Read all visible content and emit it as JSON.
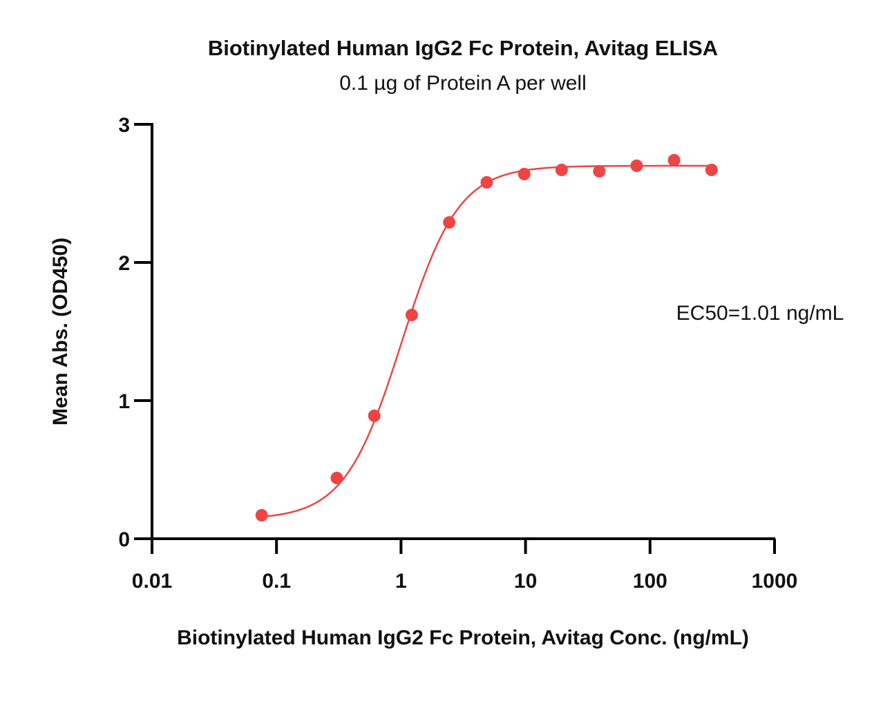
{
  "chart_data": {
    "type": "scatter",
    "title": "Biotinylated Human IgG2 Fc Protein, Avitag ELISA",
    "subtitle": "0.1 µg of Protein A per well",
    "xlabel": "Biotinylated Human IgG2 Fc Protein, Avitag Conc. (ng/mL)",
    "ylabel": "Mean Abs. (OD450)",
    "x_scale": "log",
    "xlim": [
      0.01,
      1000
    ],
    "ylim": [
      0,
      3
    ],
    "x_ticks": [
      {
        "value": 0.01,
        "label": "0.01"
      },
      {
        "value": 0.1,
        "label": "0.1"
      },
      {
        "value": 1,
        "label": "1"
      },
      {
        "value": 10,
        "label": "10"
      },
      {
        "value": 100,
        "label": "100"
      },
      {
        "value": 1000,
        "label": "1000"
      }
    ],
    "y_ticks": [
      {
        "value": 0,
        "label": "0"
      },
      {
        "value": 1,
        "label": "1"
      },
      {
        "value": 2,
        "label": "2"
      },
      {
        "value": 3,
        "label": "3"
      }
    ],
    "series": [
      {
        "color": "#ef4444",
        "x": [
          0.076,
          0.305,
          0.61,
          1.22,
          2.44,
          4.88,
          9.77,
          19.5,
          39.1,
          78.1,
          156,
          312
        ],
        "y": [
          0.17,
          0.44,
          0.89,
          1.62,
          2.29,
          2.58,
          2.64,
          2.67,
          2.66,
          2.7,
          2.74,
          2.67
        ]
      }
    ],
    "fit": {
      "model": "4PL",
      "bottom": 0.14,
      "top": 2.7,
      "ec50": 1.01,
      "hill": 1.9
    },
    "annotation": "EC50=1.01 ng/mL",
    "grid": false
  }
}
